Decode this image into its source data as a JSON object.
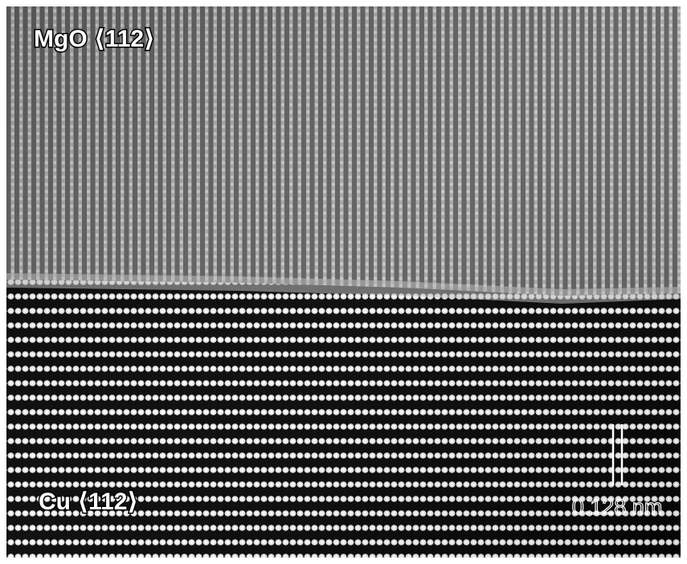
{
  "labels": {
    "top": "MgO ⟨112⟩",
    "bottom": "Cu ⟨112⟩"
  },
  "scale_bar": {
    "label": "0.128 nm"
  }
}
